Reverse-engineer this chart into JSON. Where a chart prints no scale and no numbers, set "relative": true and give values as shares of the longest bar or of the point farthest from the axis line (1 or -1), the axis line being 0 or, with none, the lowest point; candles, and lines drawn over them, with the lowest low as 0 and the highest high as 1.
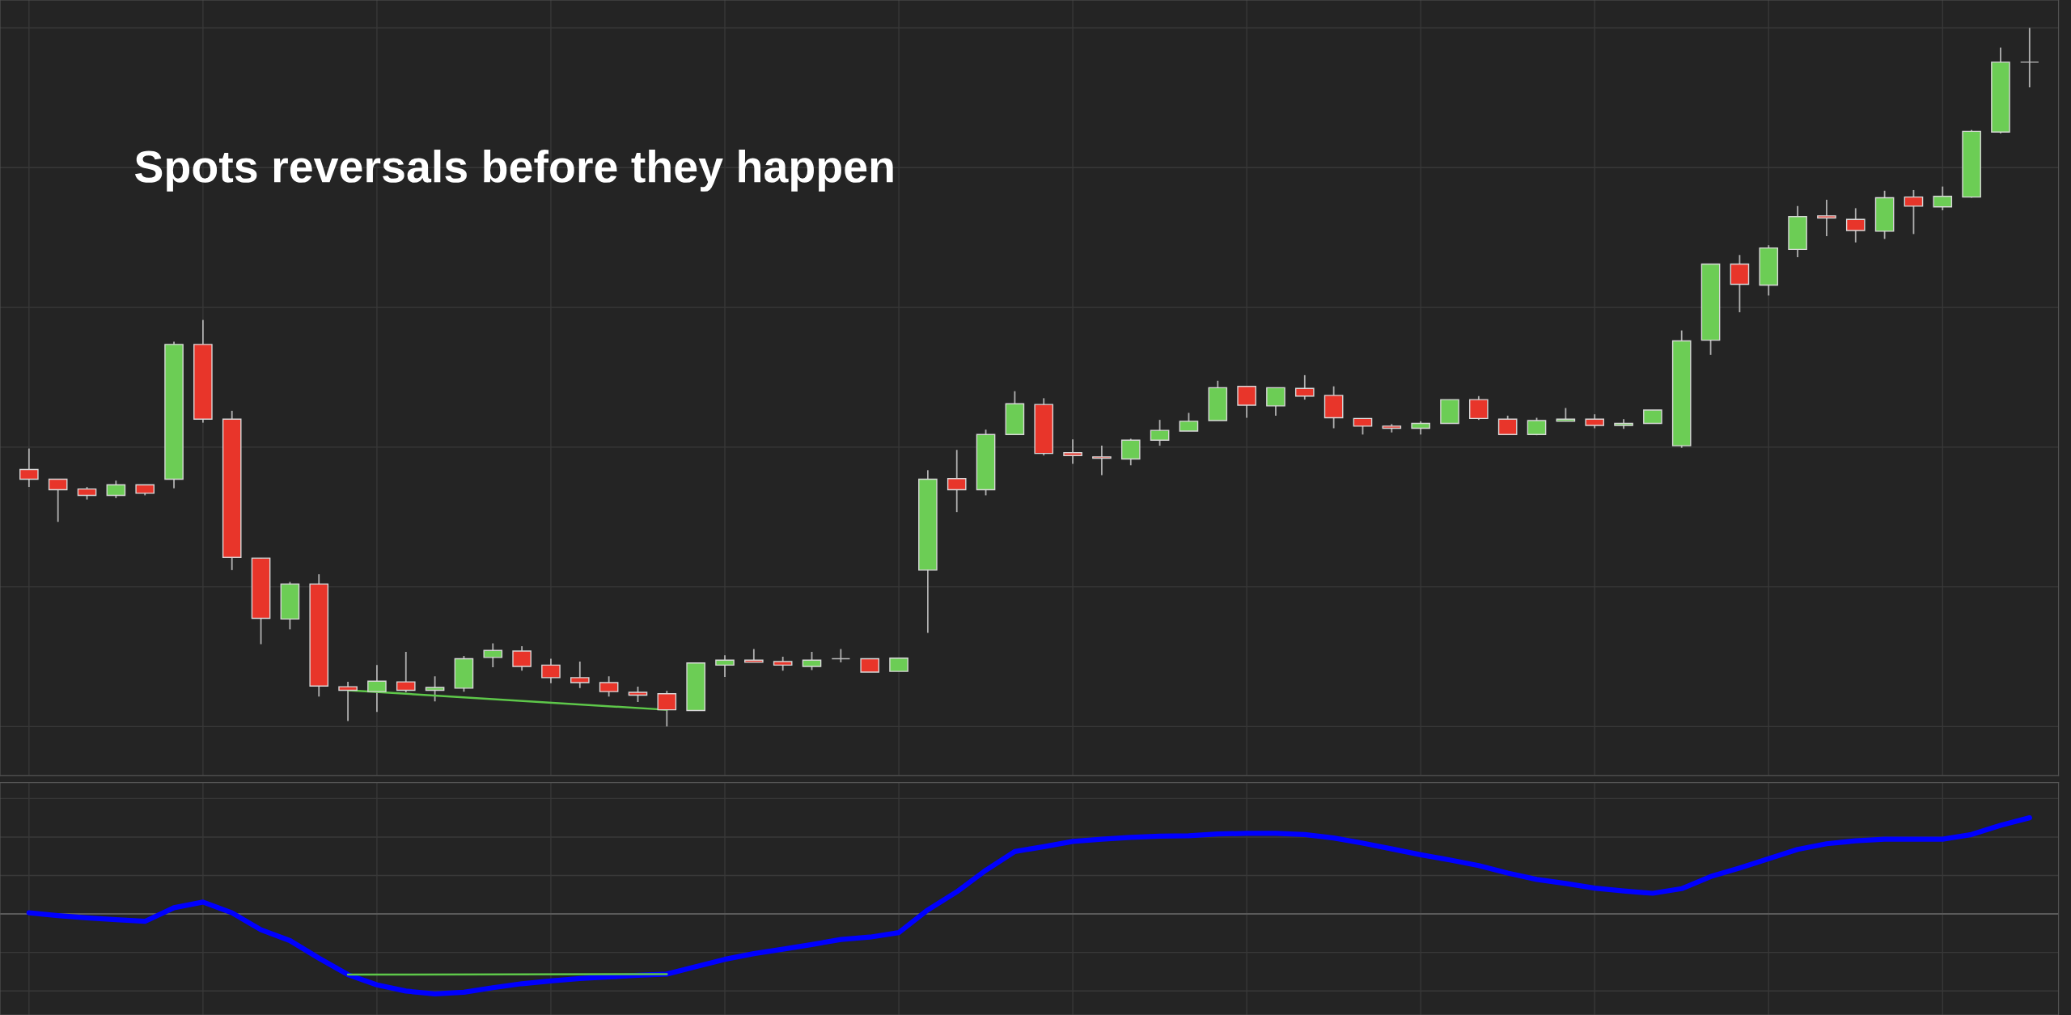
{
  "chart_data": [
    {
      "type": "candlestick",
      "relative": true,
      "grid": true,
      "tick_labels": false,
      "annotations": [
        "Spots reversals before they happen"
      ],
      "categories": [
        null,
        null,
        null,
        null,
        null,
        null,
        null,
        null,
        null,
        null,
        null,
        null,
        null,
        null,
        null,
        null,
        null,
        null,
        null,
        null,
        null,
        null,
        null,
        null,
        null,
        null,
        null,
        null,
        null,
        null,
        null,
        null,
        null,
        null,
        null,
        null,
        null,
        null,
        null,
        null,
        null,
        null,
        null,
        null,
        null,
        null,
        null,
        null,
        null,
        null,
        null,
        null,
        null,
        null,
        null,
        null,
        null,
        null,
        null,
        null,
        null,
        null,
        null,
        null,
        null,
        null,
        null,
        null,
        null,
        null
      ],
      "ohlc": [
        [
          0.368,
          0.398,
          0.343,
          0.354
        ],
        [
          0.354,
          0.354,
          0.293,
          0.339
        ],
        [
          0.34,
          0.343,
          0.325,
          0.331
        ],
        [
          0.331,
          0.352,
          0.327,
          0.346
        ],
        [
          0.346,
          0.346,
          0.331,
          0.334
        ],
        [
          0.354,
          0.551,
          0.341,
          0.547
        ],
        [
          0.547,
          0.582,
          0.435,
          0.44
        ],
        [
          0.44,
          0.452,
          0.224,
          0.242
        ],
        [
          0.241,
          0.241,
          0.118,
          0.155
        ],
        [
          0.154,
          0.207,
          0.139,
          0.204
        ],
        [
          0.204,
          0.218,
          0.043,
          0.058
        ],
        [
          0.057,
          0.064,
          0.008,
          0.052
        ],
        [
          0.05,
          0.088,
          0.021,
          0.065
        ],
        [
          0.064,
          0.107,
          0.049,
          0.052
        ],
        [
          0.052,
          0.072,
          0.036,
          0.056
        ],
        [
          0.055,
          0.101,
          0.05,
          0.097
        ],
        [
          0.099,
          0.119,
          0.085,
          0.109
        ],
        [
          0.108,
          0.115,
          0.08,
          0.086
        ],
        [
          0.088,
          0.097,
          0.062,
          0.07
        ],
        [
          0.07,
          0.093,
          0.055,
          0.063
        ],
        [
          0.063,
          0.072,
          0.043,
          0.05
        ],
        [
          0.049,
          0.057,
          0.035,
          0.045
        ],
        [
          0.047,
          0.051,
          0.0,
          0.024
        ],
        [
          0.023,
          0.091,
          0.023,
          0.091
        ],
        [
          0.088,
          0.102,
          0.071,
          0.095
        ],
        [
          0.095,
          0.111,
          0.092,
          0.092
        ],
        [
          0.093,
          0.1,
          0.08,
          0.088
        ],
        [
          0.086,
          0.107,
          0.081,
          0.095
        ],
        [
          0.097,
          0.111,
          0.092,
          0.097
        ],
        [
          0.097,
          0.097,
          0.078,
          0.078
        ],
        [
          0.079,
          0.098,
          0.079,
          0.098
        ],
        [
          0.224,
          0.367,
          0.134,
          0.354
        ],
        [
          0.355,
          0.396,
          0.307,
          0.339
        ],
        [
          0.339,
          0.425,
          0.331,
          0.418
        ],
        [
          0.418,
          0.48,
          0.418,
          0.462
        ],
        [
          0.461,
          0.47,
          0.388,
          0.391
        ],
        [
          0.392,
          0.411,
          0.376,
          0.388
        ],
        [
          0.386,
          0.402,
          0.36,
          0.384
        ],
        [
          0.383,
          0.412,
          0.374,
          0.41
        ],
        [
          0.41,
          0.439,
          0.402,
          0.424
        ],
        [
          0.423,
          0.449,
          0.423,
          0.437
        ],
        [
          0.438,
          0.495,
          0.438,
          0.485
        ],
        [
          0.487,
          0.487,
          0.442,
          0.46
        ],
        [
          0.459,
          0.485,
          0.445,
          0.485
        ],
        [
          0.484,
          0.503,
          0.468,
          0.473
        ],
        [
          0.474,
          0.487,
          0.427,
          0.442
        ],
        [
          0.441,
          0.441,
          0.418,
          0.43
        ],
        [
          0.43,
          0.433,
          0.421,
          0.427
        ],
        [
          0.427,
          0.437,
          0.418,
          0.434
        ],
        [
          0.434,
          0.468,
          0.434,
          0.468
        ],
        [
          0.468,
          0.473,
          0.439,
          0.441
        ],
        [
          0.44,
          0.445,
          0.418,
          0.418
        ],
        [
          0.418,
          0.442,
          0.417,
          0.438
        ],
        [
          0.437,
          0.456,
          0.437,
          0.44
        ],
        [
          0.44,
          0.447,
          0.427,
          0.431
        ],
        [
          0.431,
          0.44,
          0.426,
          0.434
        ],
        [
          0.434,
          0.453,
          0.434,
          0.453
        ],
        [
          0.402,
          0.567,
          0.399,
          0.552
        ],
        [
          0.553,
          0.662,
          0.532,
          0.662
        ],
        [
          0.662,
          0.675,
          0.593,
          0.633
        ],
        [
          0.632,
          0.689,
          0.617,
          0.685
        ],
        [
          0.683,
          0.745,
          0.672,
          0.73
        ],
        [
          0.731,
          0.754,
          0.702,
          0.728
        ],
        [
          0.726,
          0.742,
          0.693,
          0.71
        ],
        [
          0.709,
          0.767,
          0.698,
          0.757
        ],
        [
          0.758,
          0.768,
          0.705,
          0.745
        ],
        [
          0.744,
          0.773,
          0.739,
          0.759
        ],
        [
          0.758,
          0.854,
          0.757,
          0.852
        ],
        [
          0.851,
          0.972,
          0.849,
          0.951
        ],
        [
          0.951,
          1.0,
          0.915,
          0.951
        ]
      ],
      "colors": [
        "#e8352a",
        "#e8352a",
        "#e8352a",
        "#6ccd55",
        "#e8352a",
        "#6ccd55",
        "#e8352a",
        "#e8352a",
        "#e8352a",
        "#6ccd55",
        "#e8352a",
        "#e8352a",
        "#6ccd55",
        "#e8352a",
        "#6ccd55",
        "#6ccd55",
        "#6ccd55",
        "#e8352a",
        "#e8352a",
        "#e8352a",
        "#e8352a",
        "#e8352a",
        "#e8352a",
        "#6ccd55",
        "#6ccd55",
        "#e8352a",
        "#e8352a",
        "#6ccd55",
        "#bbbbbb",
        "#e8352a",
        "#6ccd55",
        "#6ccd55",
        "#e8352a",
        "#6ccd55",
        "#6ccd55",
        "#e8352a",
        "#e8352a",
        "#e8352a",
        "#6ccd55",
        "#6ccd55",
        "#6ccd55",
        "#6ccd55",
        "#e8352a",
        "#6ccd55",
        "#e8352a",
        "#e8352a",
        "#e8352a",
        "#e8352a",
        "#6ccd55",
        "#6ccd55",
        "#e8352a",
        "#e8352a",
        "#6ccd55",
        "#6ccd55",
        "#e8352a",
        "#6ccd55",
        "#6ccd55",
        "#6ccd55",
        "#6ccd55",
        "#e8352a",
        "#6ccd55",
        "#6ccd55",
        "#e8352a",
        "#e8352a",
        "#6ccd55",
        "#e8352a",
        "#6ccd55",
        "#6ccd55",
        "#6ccd55",
        "#bbbbbb"
      ],
      "series": [
        {
          "type": "line",
          "color": "#5ec84a",
          "values": [
            null,
            null,
            null,
            null,
            null,
            null,
            null,
            null,
            null,
            null,
            null,
            0.052,
            null,
            null,
            null,
            null,
            null,
            null,
            null,
            null,
            null,
            null,
            0.024,
            null,
            null,
            null,
            null,
            null,
            null,
            null,
            null,
            null,
            null,
            null,
            null,
            null,
            null,
            null,
            null,
            null,
            null,
            null,
            null,
            null,
            null,
            null,
            null,
            null,
            null,
            null,
            null,
            null,
            null,
            null,
            null,
            null,
            null,
            null,
            null,
            null,
            null,
            null,
            null,
            null,
            null,
            null,
            null,
            null,
            null,
            null
          ]
        }
      ]
    },
    {
      "type": "line",
      "relative": true,
      "grid": true,
      "tick_labels": false,
      "categories": [
        null,
        null,
        null,
        null,
        null,
        null,
        null,
        null,
        null,
        null,
        null,
        null,
        null,
        null,
        null,
        null,
        null,
        null,
        null,
        null,
        null,
        null,
        null,
        null,
        null,
        null,
        null,
        null,
        null,
        null,
        null,
        null,
        null,
        null,
        null,
        null,
        null,
        null,
        null,
        null,
        null,
        null,
        null,
        null,
        null,
        null,
        null,
        null,
        null,
        null,
        null,
        null,
        null,
        null,
        null,
        null,
        null,
        null,
        null,
        null,
        null,
        null,
        null,
        null,
        null,
        null,
        null,
        null,
        null,
        null
      ],
      "ref_lines": [
        {
          "axis": "y",
          "value": 0,
          "color": "#5a5a5a"
        }
      ],
      "series": [
        {
          "color": "#0000ff",
          "values": [
            0.012,
            -0.017,
            -0.041,
            -0.059,
            -0.077,
            0.065,
            0.124,
            0.012,
            -0.165,
            -0.277,
            -0.46,
            -0.631,
            -0.737,
            -0.802,
            -0.831,
            -0.814,
            -0.767,
            -0.725,
            -0.696,
            -0.672,
            -0.655,
            -0.637,
            -0.625,
            -0.548,
            -0.472,
            -0.413,
            -0.366,
            -0.318,
            -0.265,
            -0.241,
            -0.194,
            0.042,
            0.23,
            0.454,
            0.649,
            0.7,
            0.754,
            0.778,
            0.796,
            0.808,
            0.814,
            0.832,
            0.838,
            0.838,
            0.826,
            0.79,
            0.736,
            0.676,
            0.616,
            0.562,
            0.503,
            0.425,
            0.359,
            0.317,
            0.269,
            0.239,
            0.215,
            0.263,
            0.389,
            0.478,
            0.574,
            0.671,
            0.73,
            0.76,
            0.778,
            0.778,
            0.778,
            0.826,
            0.922,
            1.0
          ]
        },
        {
          "color": "#5ec84a",
          "values": [
            null,
            null,
            null,
            null,
            null,
            null,
            null,
            null,
            null,
            null,
            null,
            -0.631,
            null,
            null,
            null,
            null,
            null,
            null,
            null,
            null,
            null,
            null,
            -0.625,
            null,
            null,
            null,
            null,
            null,
            null,
            null,
            null,
            null,
            null,
            null,
            null,
            null,
            null,
            null,
            null,
            null,
            null,
            null,
            null,
            null,
            null,
            null,
            null,
            null,
            null,
            null,
            null,
            null,
            null,
            null,
            null,
            null,
            null,
            null,
            null,
            null,
            null,
            null,
            null,
            null,
            null,
            null,
            null,
            null,
            null,
            null
          ]
        }
      ]
    }
  ]
}
